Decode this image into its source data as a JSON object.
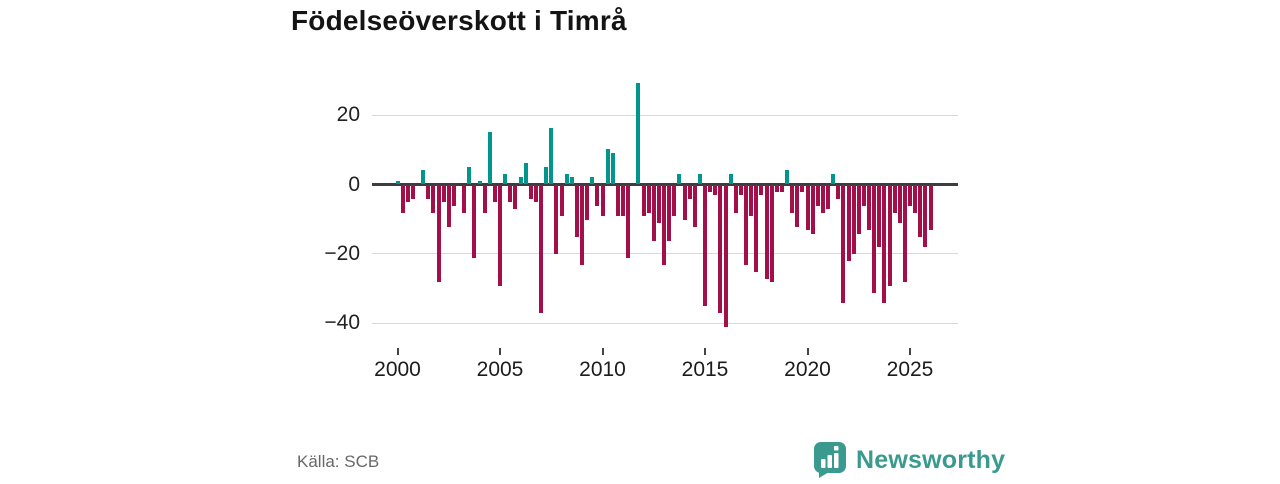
{
  "title": "Födelseöverskott i Timrå",
  "source": "Källa: SCB",
  "branding": {
    "name": "Newsworthy",
    "icon": "bar-chart-speech-bubble-icon"
  },
  "colors": {
    "positive_bar": "#00968e",
    "negative_bar": "#a31049",
    "brand_teal": "#3a9a90",
    "gridline": "#d9d9d9",
    "zero_axis": "#3d3d3d",
    "title_text": "#141414",
    "axis_text": "#222222",
    "source_text": "#686868"
  },
  "chart_data": {
    "type": "bar",
    "title": "Födelseöverskott i Timrå",
    "frequency": "quarterly",
    "start_year": 2000,
    "start_quarter": 1,
    "xlabel": "",
    "ylabel": "",
    "ylim": [
      -45,
      32
    ],
    "grid": "horizontal",
    "y_ticks": [
      20,
      0,
      -20,
      -40
    ],
    "y_tick_labels": [
      "20",
      "0",
      "−20",
      "−40"
    ],
    "x_ticks": [
      2000,
      2005,
      2010,
      2015,
      2020,
      2025
    ],
    "x_tick_labels": [
      "2000",
      "2005",
      "2010",
      "2015",
      "2020",
      "2025"
    ],
    "values": [
      1,
      -8,
      -5,
      -4,
      0,
      4,
      -4,
      -8,
      -28,
      -5,
      -12,
      -6,
      0,
      -8,
      5,
      -21,
      1,
      -8,
      15,
      -5,
      -29,
      3,
      -5,
      -7,
      2,
      6,
      -4,
      -5,
      -37,
      5,
      16,
      -20,
      -9,
      3,
      2,
      -15,
      -23,
      -10,
      2,
      -6,
      -9,
      10,
      9,
      -9,
      -9,
      -21,
      0,
      29,
      -9,
      -8,
      -16,
      -11,
      -23,
      -16,
      -9,
      3,
      -10,
      -4,
      -12,
      3,
      -35,
      -2,
      -3,
      -37,
      -41,
      3,
      -8,
      -3,
      -23,
      -9,
      -25,
      -3,
      -27,
      -28,
      -2,
      -2,
      4,
      -8,
      -12,
      -2,
      -13,
      -14,
      -6,
      -8,
      -7,
      3,
      -4,
      -34,
      -22,
      -20,
      -14,
      -6,
      -13,
      -31,
      -18,
      -34,
      -29,
      -8,
      -11,
      -28,
      -6,
      -8,
      -15,
      -18,
      -13
    ]
  }
}
